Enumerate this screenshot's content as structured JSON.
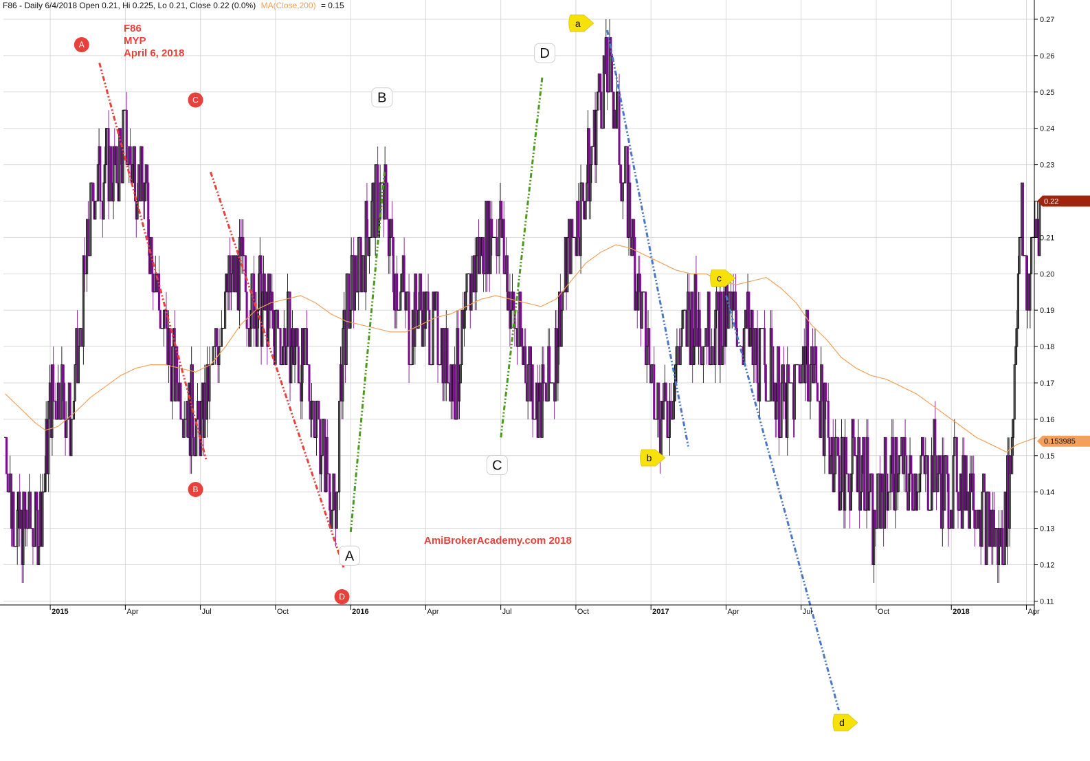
{
  "header": {
    "ticker_line": "F86 - Daily 6/4/2018 Open 0.21, Hi 0.225, Lo 0.21, Close 0.22 (0.0%)",
    "ma_label": "MA(Close,200)",
    "ma_value": "= 0.15"
  },
  "annotation": {
    "line1": "F86",
    "line2": "MYP",
    "line3": "April 6, 2018"
  },
  "watermark": "AmiBrokerAcademy.com   2018",
  "colors": {
    "up_bar": "#111111",
    "down_bar": "#7a0f8f",
    "ma_line": "#f5a05a",
    "grid": "#d9d9d9",
    "red_trend": "#e8413c",
    "green_trend": "#4a9a1c",
    "blue_trend": "#4a78c8",
    "last_price_tag": "#a0250f",
    "ma_tag": "#f5a05a",
    "yellow_marker": "#f6e10a"
  },
  "chart_data": {
    "type": "bar",
    "title": "F86 - Daily 6/4/2018",
    "y_axis": {
      "min": 0.11,
      "max": 0.27,
      "ticks": [
        "0.27",
        "0.26",
        "0.25",
        "0.24",
        "0.23",
        "0.22",
        "0.21",
        "0.20",
        "0.19",
        "0.18",
        "0.17",
        "0.16",
        "0.15",
        "0.14",
        "0.13",
        "0.12",
        "0.11"
      ]
    },
    "x_axis": {
      "labels": [
        {
          "t": 0.25,
          "text": "2015",
          "bold": true
        },
        {
          "t": 3.25,
          "text": "Apr",
          "bold": false
        },
        {
          "t": 6.25,
          "text": "Jul",
          "bold": false
        },
        {
          "t": 9.25,
          "text": "Oct",
          "bold": false
        },
        {
          "t": 12.25,
          "text": "2016",
          "bold": true
        },
        {
          "t": 15.25,
          "text": "Apr",
          "bold": false
        },
        {
          "t": 18.25,
          "text": "Jul",
          "bold": false
        },
        {
          "t": 21.25,
          "text": "Oct",
          "bold": false
        },
        {
          "t": 24.25,
          "text": "2017",
          "bold": true
        },
        {
          "t": 27.25,
          "text": "Apr",
          "bold": false
        },
        {
          "t": 30.25,
          "text": "Jul",
          "bold": false
        },
        {
          "t": 33.25,
          "text": "Oct",
          "bold": false
        },
        {
          "t": 36.25,
          "text": "2018",
          "bold": true
        },
        {
          "t": 39.25,
          "text": "Apr",
          "bold": false
        }
      ]
    },
    "last_price": {
      "value": 0.22,
      "label": "0.22"
    },
    "ma_last": {
      "value": 0.153985,
      "label": "0.153985"
    },
    "price_anchors": [
      [
        -1.6,
        0.155
      ],
      [
        -1.4,
        0.14
      ],
      [
        -1.1,
        0.13
      ],
      [
        -0.6,
        0.13
      ],
      [
        -0.2,
        0.132
      ],
      [
        0.2,
        0.165
      ],
      [
        0.6,
        0.17
      ],
      [
        1.0,
        0.158
      ],
      [
        1.3,
        0.175
      ],
      [
        1.6,
        0.2
      ],
      [
        1.9,
        0.222
      ],
      [
        2.2,
        0.228
      ],
      [
        2.5,
        0.23
      ],
      [
        2.8,
        0.225
      ],
      [
        3.1,
        0.238
      ],
      [
        3.4,
        0.232
      ],
      [
        3.7,
        0.228
      ],
      [
        4.0,
        0.222
      ],
      [
        4.3,
        0.205
      ],
      [
        4.6,
        0.19
      ],
      [
        4.9,
        0.178
      ],
      [
        5.2,
        0.173
      ],
      [
        5.5,
        0.168
      ],
      [
        5.8,
        0.162
      ],
      [
        6.1,
        0.155
      ],
      [
        6.4,
        0.163
      ],
      [
        6.7,
        0.175
      ],
      [
        7.0,
        0.19
      ],
      [
        7.3,
        0.195
      ],
      [
        7.6,
        0.2
      ],
      [
        7.9,
        0.198
      ],
      [
        8.2,
        0.192
      ],
      [
        8.5,
        0.193
      ],
      [
        8.8,
        0.19
      ],
      [
        9.1,
        0.185
      ],
      [
        9.4,
        0.182
      ],
      [
        9.7,
        0.183
      ],
      [
        10.0,
        0.18
      ],
      [
        10.3,
        0.175
      ],
      [
        10.6,
        0.168
      ],
      [
        10.9,
        0.16
      ],
      [
        11.2,
        0.15
      ],
      [
        11.4,
        0.14
      ],
      [
        11.6,
        0.132
      ],
      [
        11.9,
        0.185
      ],
      [
        12.2,
        0.195
      ],
      [
        12.5,
        0.2
      ],
      [
        12.8,
        0.21
      ],
      [
        13.1,
        0.218
      ],
      [
        13.4,
        0.222
      ],
      [
        13.7,
        0.215
      ],
      [
        14.0,
        0.2
      ],
      [
        14.3,
        0.195
      ],
      [
        14.6,
        0.185
      ],
      [
        14.9,
        0.192
      ],
      [
        15.2,
        0.188
      ],
      [
        15.5,
        0.183
      ],
      [
        15.8,
        0.182
      ],
      [
        16.1,
        0.175
      ],
      [
        16.4,
        0.17
      ],
      [
        16.7,
        0.183
      ],
      [
        17.0,
        0.198
      ],
      [
        17.3,
        0.205
      ],
      [
        17.6,
        0.21
      ],
      [
        17.9,
        0.215
      ],
      [
        18.2,
        0.212
      ],
      [
        18.5,
        0.195
      ],
      [
        18.8,
        0.185
      ],
      [
        19.1,
        0.178
      ],
      [
        19.4,
        0.172
      ],
      [
        19.7,
        0.165
      ],
      [
        20.0,
        0.165
      ],
      [
        20.3,
        0.175
      ],
      [
        20.6,
        0.19
      ],
      [
        20.9,
        0.205
      ],
      [
        21.2,
        0.215
      ],
      [
        21.5,
        0.222
      ],
      [
        21.8,
        0.232
      ],
      [
        22.1,
        0.25
      ],
      [
        22.4,
        0.255
      ],
      [
        22.7,
        0.25
      ],
      [
        23.0,
        0.232
      ],
      [
        23.3,
        0.218
      ],
      [
        23.6,
        0.2
      ],
      [
        23.9,
        0.185
      ],
      [
        24.2,
        0.175
      ],
      [
        24.5,
        0.165
      ],
      [
        24.8,
        0.158
      ],
      [
        25.1,
        0.172
      ],
      [
        25.4,
        0.182
      ],
      [
        25.7,
        0.188
      ],
      [
        26.0,
        0.187
      ],
      [
        26.3,
        0.186
      ],
      [
        26.6,
        0.186
      ],
      [
        26.9,
        0.185
      ],
      [
        27.2,
        0.188
      ],
      [
        27.5,
        0.187
      ],
      [
        27.8,
        0.185
      ],
      [
        28.1,
        0.182
      ],
      [
        28.4,
        0.178
      ],
      [
        28.7,
        0.175
      ],
      [
        29.0,
        0.173
      ],
      [
        29.3,
        0.168
      ],
      [
        29.6,
        0.162
      ],
      [
        29.9,
        0.168
      ],
      [
        30.2,
        0.178
      ],
      [
        30.5,
        0.178
      ],
      [
        30.8,
        0.17
      ],
      [
        31.1,
        0.162
      ],
      [
        31.4,
        0.152
      ],
      [
        31.7,
        0.147
      ],
      [
        32.0,
        0.145
      ],
      [
        32.3,
        0.147
      ],
      [
        32.6,
        0.15
      ],
      [
        32.9,
        0.14
      ],
      [
        33.1,
        0.128
      ],
      [
        33.4,
        0.142
      ],
      [
        33.7,
        0.145
      ],
      [
        34.0,
        0.148
      ],
      [
        34.3,
        0.145
      ],
      [
        34.6,
        0.143
      ],
      [
        34.9,
        0.145
      ],
      [
        35.2,
        0.143
      ],
      [
        35.5,
        0.148
      ],
      [
        35.8,
        0.143
      ],
      [
        36.1,
        0.14
      ],
      [
        36.4,
        0.145
      ],
      [
        36.7,
        0.14
      ],
      [
        37.0,
        0.143
      ],
      [
        37.3,
        0.138
      ],
      [
        37.6,
        0.133
      ],
      [
        37.9,
        0.128
      ],
      [
        38.2,
        0.125
      ],
      [
        38.4,
        0.135
      ],
      [
        38.6,
        0.15
      ],
      [
        38.8,
        0.19
      ],
      [
        39.0,
        0.215
      ],
      [
        39.2,
        0.195
      ],
      [
        39.4,
        0.205
      ],
      [
        39.6,
        0.215
      ],
      [
        39.8,
        0.215
      ]
    ],
    "ma_points": [
      [
        -1.6,
        0.167
      ],
      [
        -1.0,
        0.163
      ],
      [
        -0.4,
        0.159
      ],
      [
        0.0,
        0.157
      ],
      [
        0.5,
        0.158
      ],
      [
        1.2,
        0.162
      ],
      [
        1.8,
        0.166
      ],
      [
        2.4,
        0.169
      ],
      [
        3.0,
        0.172
      ],
      [
        3.6,
        0.174
      ],
      [
        4.2,
        0.175
      ],
      [
        4.8,
        0.175
      ],
      [
        5.4,
        0.174
      ],
      [
        6.0,
        0.173
      ],
      [
        6.6,
        0.175
      ],
      [
        7.2,
        0.18
      ],
      [
        7.8,
        0.186
      ],
      [
        8.4,
        0.19
      ],
      [
        9.0,
        0.192
      ],
      [
        9.6,
        0.193
      ],
      [
        10.2,
        0.194
      ],
      [
        10.8,
        0.192
      ],
      [
        11.4,
        0.189
      ],
      [
        12.0,
        0.187
      ],
      [
        12.6,
        0.186
      ],
      [
        13.2,
        0.185
      ],
      [
        13.8,
        0.184
      ],
      [
        14.4,
        0.184
      ],
      [
        15.0,
        0.186
      ],
      [
        15.6,
        0.188
      ],
      [
        16.2,
        0.189
      ],
      [
        16.8,
        0.191
      ],
      [
        17.4,
        0.193
      ],
      [
        18.0,
        0.194
      ],
      [
        18.6,
        0.193
      ],
      [
        19.2,
        0.192
      ],
      [
        19.8,
        0.191
      ],
      [
        20.4,
        0.193
      ],
      [
        21.0,
        0.198
      ],
      [
        21.6,
        0.203
      ],
      [
        22.2,
        0.206
      ],
      [
        22.8,
        0.208
      ],
      [
        23.4,
        0.207
      ],
      [
        24.0,
        0.205
      ],
      [
        24.6,
        0.203
      ],
      [
        25.2,
        0.201
      ],
      [
        25.8,
        0.2
      ],
      [
        26.4,
        0.2
      ],
      [
        27.0,
        0.198
      ],
      [
        27.6,
        0.197
      ],
      [
        28.2,
        0.198
      ],
      [
        28.8,
        0.199
      ],
      [
        29.4,
        0.196
      ],
      [
        30.0,
        0.192
      ],
      [
        30.6,
        0.186
      ],
      [
        31.2,
        0.182
      ],
      [
        31.8,
        0.177
      ],
      [
        32.4,
        0.174
      ],
      [
        33.0,
        0.172
      ],
      [
        33.6,
        0.171
      ],
      [
        34.2,
        0.169
      ],
      [
        34.8,
        0.167
      ],
      [
        35.4,
        0.164
      ],
      [
        36.0,
        0.161
      ],
      [
        36.6,
        0.158
      ],
      [
        37.2,
        0.155
      ],
      [
        37.8,
        0.153
      ],
      [
        38.4,
        0.151
      ],
      [
        38.8,
        0.153
      ],
      [
        39.2,
        0.154
      ],
      [
        39.6,
        0.155
      ]
    ],
    "trendlines": [
      {
        "color": "red",
        "points": [
          [
            2.16,
            0.258
          ],
          [
            6.42,
            0.149
          ]
        ]
      },
      {
        "color": "red",
        "points": [
          [
            6.6,
            0.228
          ],
          [
            11.93,
            0.119
          ]
        ]
      },
      {
        "color": "green",
        "points": [
          [
            12.2,
            0.129
          ],
          [
            13.55,
            0.228
          ]
        ]
      },
      {
        "color": "green",
        "points": [
          [
            18.2,
            0.155
          ],
          [
            19.85,
            0.254
          ]
        ]
      },
      {
        "color": "blue",
        "points": [
          [
            22.45,
            0.267
          ],
          [
            25.7,
            0.152
          ]
        ]
      },
      {
        "color": "blue",
        "points": [
          [
            27.2,
            0.194
          ],
          [
            31.7,
            0.08
          ]
        ]
      }
    ],
    "labels": [
      {
        "text": "A",
        "style": "red",
        "t": 1.45,
        "v": 0.263
      },
      {
        "text": "C",
        "style": "red",
        "t": 6.0,
        "v": 0.2478
      },
      {
        "text": "B",
        "style": "red",
        "t": 6.0,
        "v": 0.1407
      },
      {
        "text": "D",
        "style": "red",
        "t": 11.85,
        "v": 0.1112
      },
      {
        "text": "B",
        "style": "white",
        "t": 13.45,
        "v": 0.2485
      },
      {
        "text": "D",
        "style": "white",
        "t": 19.95,
        "v": 0.2607
      },
      {
        "text": "C",
        "style": "white",
        "t": 18.05,
        "v": 0.1474
      },
      {
        "text": "A",
        "style": "white",
        "t": 12.15,
        "v": 0.1225
      },
      {
        "text": "a",
        "style": "yellow",
        "t": 21.3,
        "v": 0.2689
      },
      {
        "text": "b",
        "style": "yellow",
        "t": 24.15,
        "v": 0.1494
      },
      {
        "text": "c",
        "style": "yellow",
        "t": 26.95,
        "v": 0.1988
      },
      {
        "text": "d",
        "style": "yellow",
        "t": 31.85,
        "v": 0.0766
      }
    ]
  }
}
